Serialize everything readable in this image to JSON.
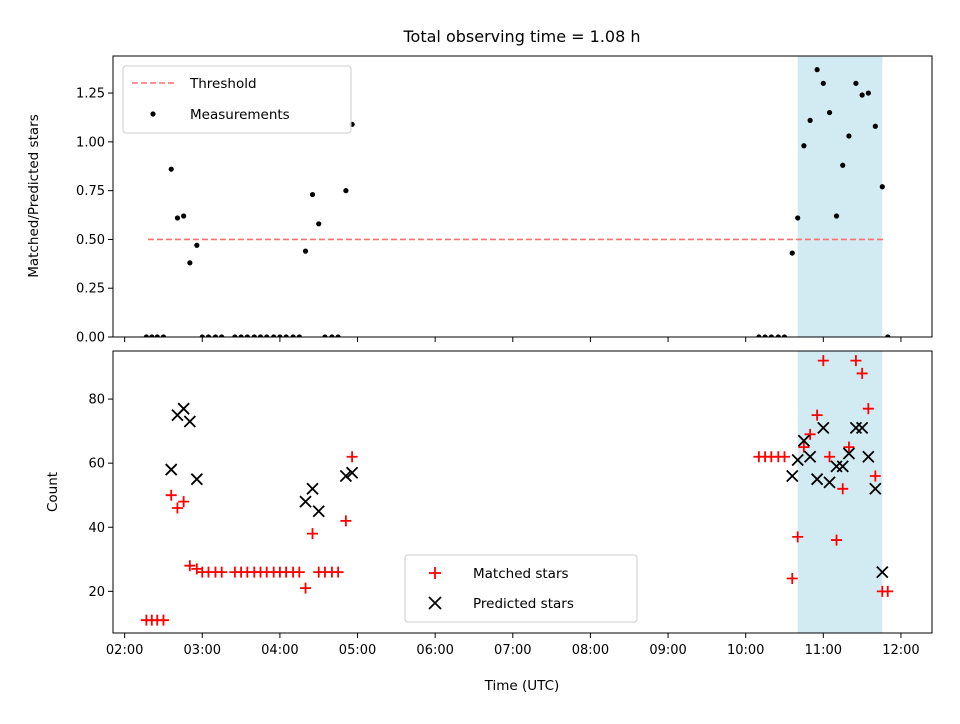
{
  "title": "Total observing time = 1.08 h",
  "xlabel": "Time (UTC)",
  "x_ticks": [
    "02:00",
    "03:00",
    "04:00",
    "05:00",
    "06:00",
    "07:00",
    "08:00",
    "09:00",
    "10:00",
    "11:00",
    "12:00"
  ],
  "colors": {
    "threshold": "#ff7070",
    "measurement": "#000000",
    "matched": "#ff0000",
    "predicted": "#000000",
    "shade": "#add8e6"
  },
  "chart_data": [
    {
      "type": "scatter",
      "ylabel": "Matched/Predicted stars",
      "xlim": [
        1.85,
        12.4
      ],
      "ylim": [
        0,
        1.44
      ],
      "y_ticks": [
        "0.00",
        "0.25",
        "0.50",
        "0.75",
        "1.00",
        "1.25"
      ],
      "legend": {
        "placement": "top-left",
        "entries": [
          "Threshold",
          "Measurements"
        ]
      },
      "threshold": {
        "name": "Threshold",
        "y": 0.5,
        "x_range": [
          2.3,
          11.8
        ]
      },
      "shaded_region": {
        "x_range": [
          10.67,
          11.76
        ]
      },
      "series": [
        {
          "name": "Measurements",
          "x": [
            2.28,
            2.35,
            2.42,
            2.5,
            2.6,
            2.68,
            2.76,
            2.84,
            2.93,
            3.0,
            3.08,
            3.17,
            3.25,
            3.42,
            3.5,
            3.58,
            3.67,
            3.75,
            3.83,
            3.92,
            4.0,
            4.08,
            4.17,
            4.25,
            4.33,
            4.42,
            4.5,
            4.58,
            4.67,
            4.75,
            4.85,
            4.93,
            10.17,
            10.25,
            10.33,
            10.42,
            10.5,
            10.6,
            10.67,
            10.75,
            10.83,
            10.92,
            11.0,
            11.08,
            11.17,
            11.25,
            11.33,
            11.42,
            11.5,
            11.58,
            11.67,
            11.76,
            11.83
          ],
          "y": [
            0,
            0,
            0,
            0,
            0.86,
            0.61,
            0.62,
            0.38,
            0.47,
            0,
            0,
            0,
            0,
            0,
            0,
            0,
            0,
            0,
            0,
            0,
            0,
            0,
            0,
            0,
            0.44,
            0.73,
            0.58,
            0,
            0,
            0,
            0.75,
            1.09,
            0,
            0,
            0,
            0,
            0,
            0.43,
            0.61,
            0.98,
            1.11,
            1.37,
            1.3,
            1.15,
            0.62,
            0.88,
            1.03,
            1.3,
            1.24,
            1.25,
            1.08,
            0.77,
            0
          ]
        }
      ]
    },
    {
      "type": "scatter",
      "ylabel": "Count",
      "xlim": [
        1.85,
        12.4
      ],
      "ylim": [
        7,
        95
      ],
      "y_ticks": [
        "20",
        "40",
        "60",
        "80"
      ],
      "legend": {
        "placement": "bottom-center",
        "entries": [
          "Matched stars",
          "Predicted stars"
        ]
      },
      "shaded_region": {
        "x_range": [
          10.67,
          11.76
        ]
      },
      "series": [
        {
          "name": "Matched stars",
          "x": [
            2.28,
            2.35,
            2.42,
            2.5,
            2.6,
            2.68,
            2.76,
            2.84,
            2.93,
            3.0,
            3.08,
            3.17,
            3.25,
            3.42,
            3.5,
            3.58,
            3.67,
            3.75,
            3.83,
            3.92,
            4.0,
            4.08,
            4.17,
            4.25,
            4.33,
            4.42,
            4.5,
            4.58,
            4.67,
            4.75,
            4.85,
            4.93,
            10.17,
            10.25,
            10.33,
            10.42,
            10.5,
            10.6,
            10.67,
            10.75,
            10.83,
            10.92,
            11.0,
            11.08,
            11.17,
            11.25,
            11.33,
            11.42,
            11.5,
            11.58,
            11.67,
            11.76,
            11.83
          ],
          "y": [
            11,
            11,
            11,
            11,
            50,
            46,
            48,
            28,
            27,
            26,
            26,
            26,
            26,
            26,
            26,
            26,
            26,
            26,
            26,
            26,
            26,
            26,
            26,
            26,
            21,
            38,
            26,
            26,
            26,
            26,
            42,
            62,
            62,
            62,
            62,
            62,
            62,
            24,
            37,
            65,
            69,
            75,
            92,
            62,
            36,
            52,
            65,
            92,
            88,
            77,
            56,
            20,
            20
          ]
        },
        {
          "name": "Predicted stars",
          "x": [
            2.6,
            2.68,
            2.76,
            2.84,
            2.93,
            4.33,
            4.42,
            4.5,
            4.85,
            4.93,
            10.6,
            10.67,
            10.75,
            10.83,
            10.92,
            11.0,
            11.08,
            11.17,
            11.25,
            11.33,
            11.42,
            11.5,
            11.58,
            11.67,
            11.76
          ],
          "y": [
            58,
            75,
            77,
            73,
            55,
            48,
            52,
            45,
            56,
            57,
            56,
            61,
            67,
            62,
            55,
            71,
            54,
            59,
            59,
            63,
            71,
            71,
            62,
            52,
            26
          ]
        }
      ]
    }
  ]
}
